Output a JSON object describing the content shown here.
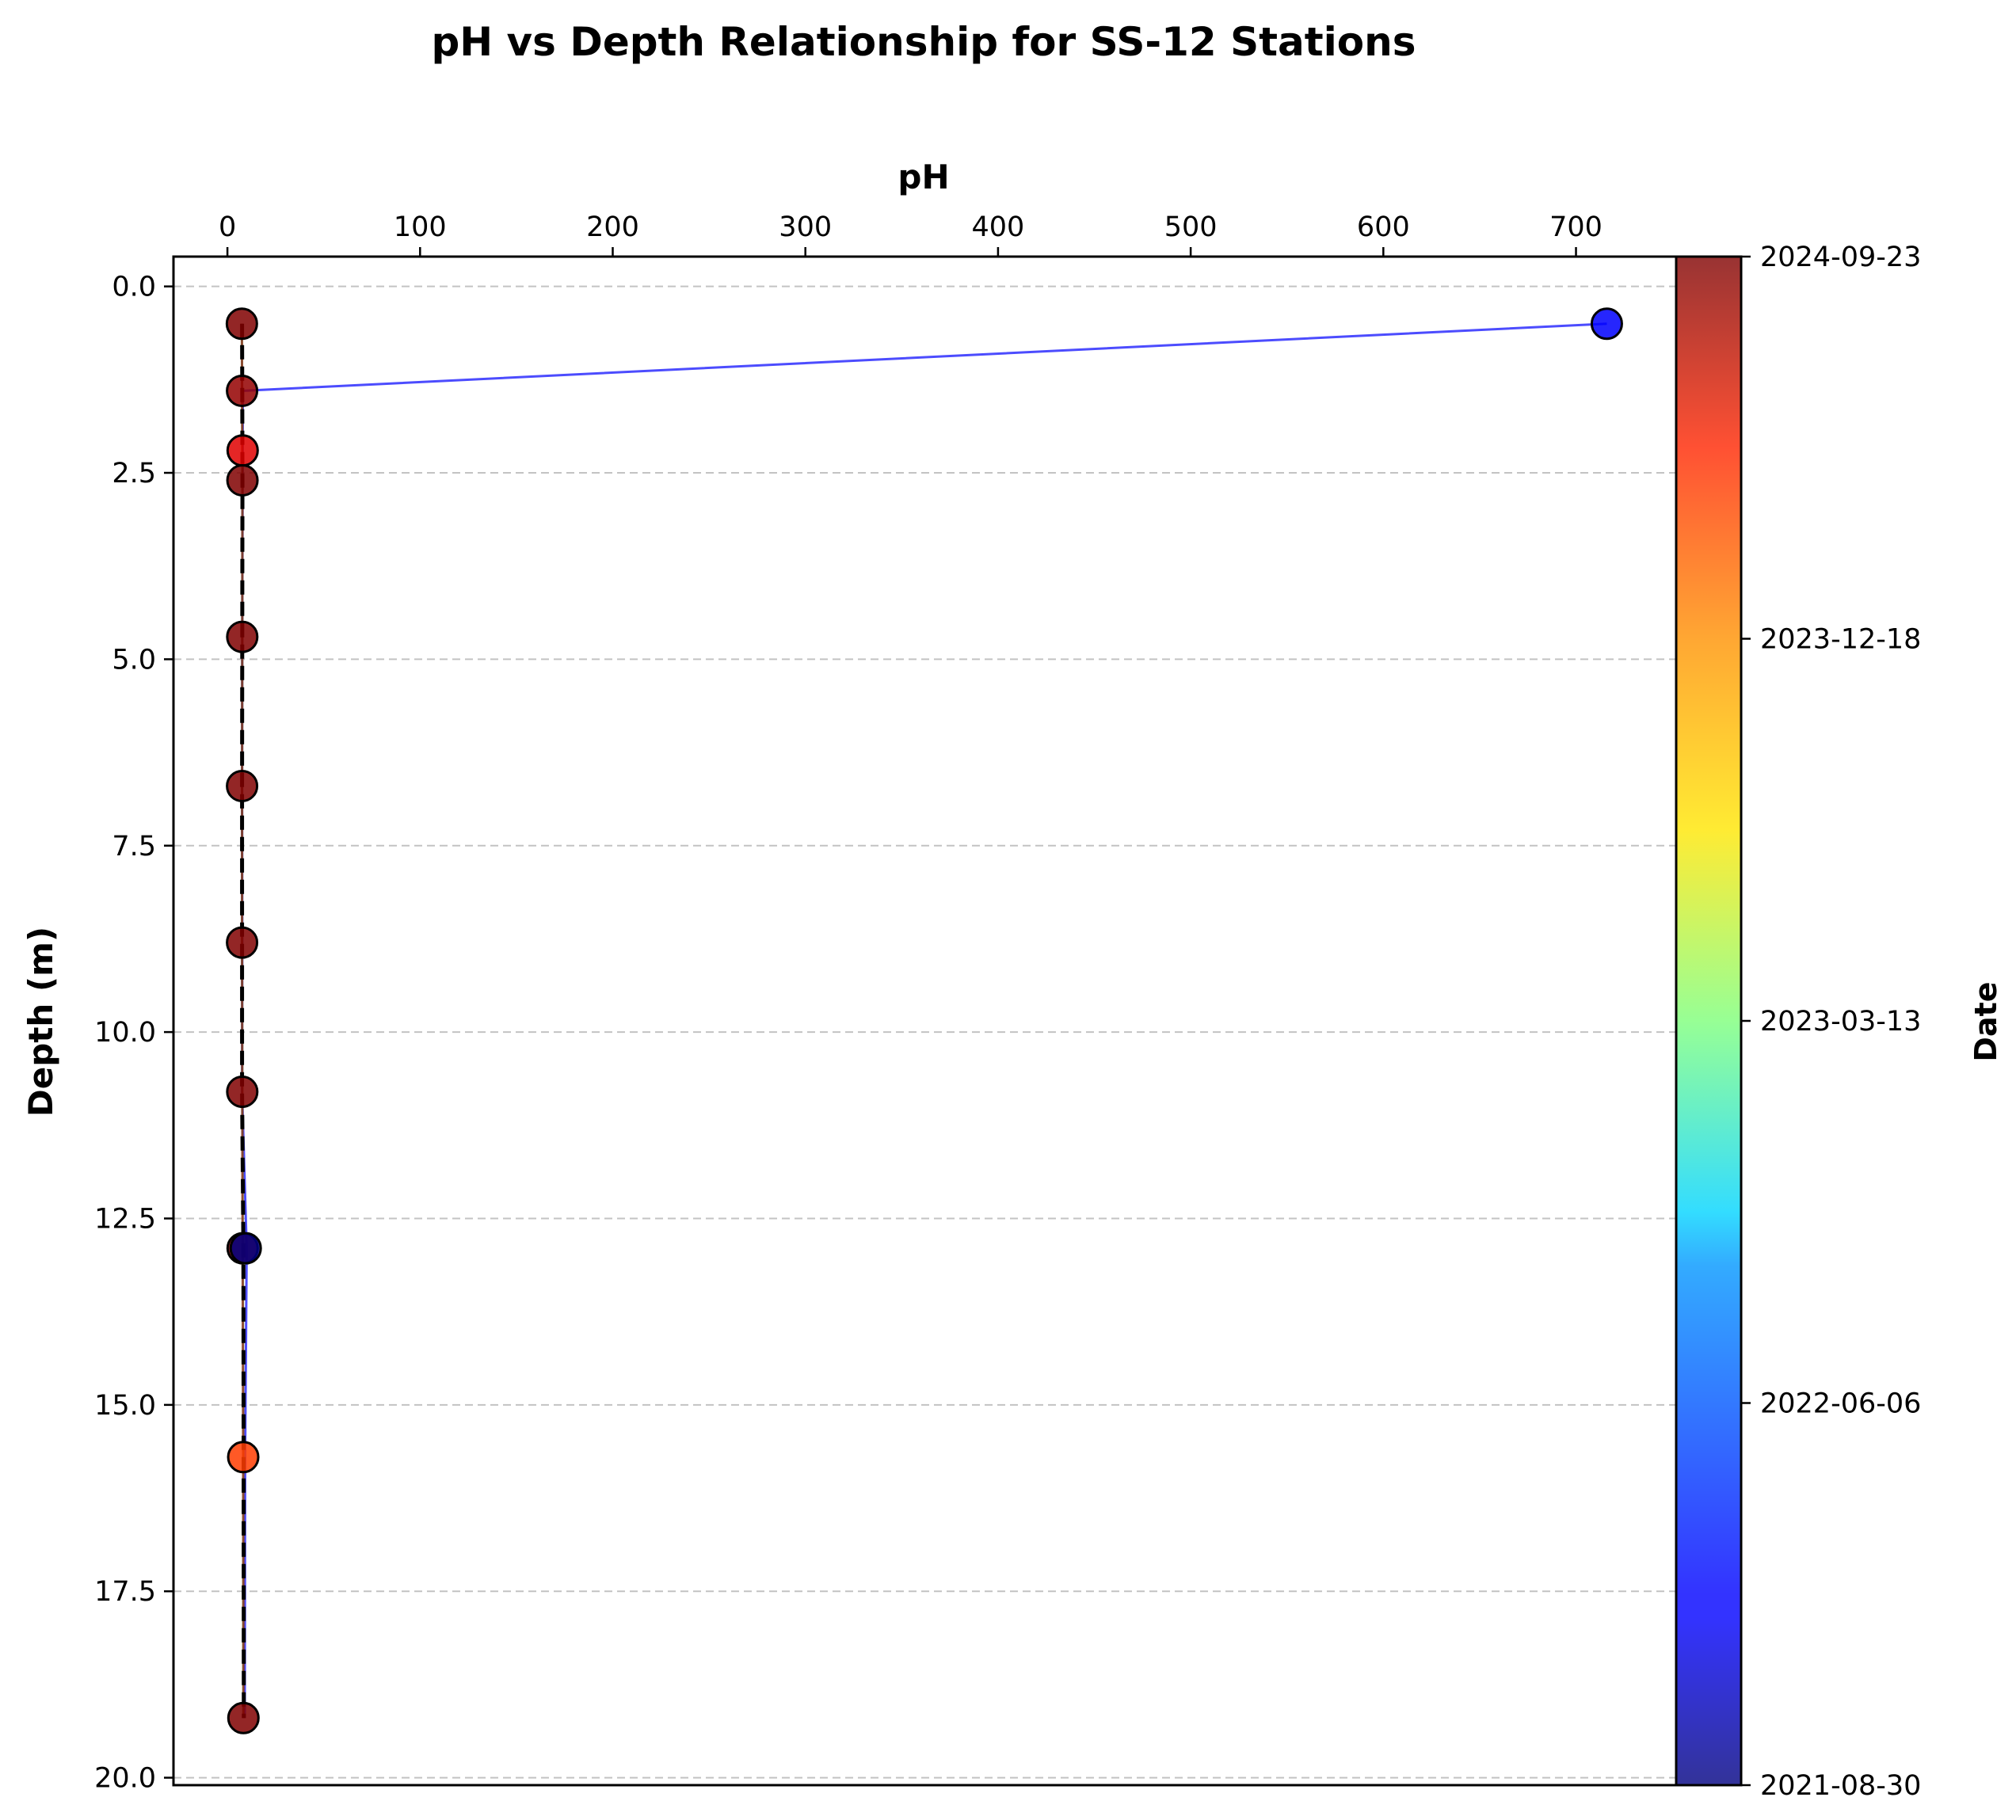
{
  "chart_data": {
    "type": "scatter",
    "title": "pH vs Depth Relationship for SS-12 Stations",
    "xlabel": "pH",
    "ylabel": "Depth (m)",
    "x_axis_position": "top",
    "y_inverted": true,
    "xlim": [
      -28,
      752
    ],
    "ylim": [
      20.1,
      -0.4
    ],
    "x_ticks": [
      0,
      100,
      200,
      300,
      400,
      500,
      600,
      700
    ],
    "x_tick_labels": [
      "0",
      "100",
      "200",
      "300",
      "400",
      "500",
      "600",
      "700"
    ],
    "y_ticks": [
      0,
      2.5,
      5,
      7.5,
      10,
      12.5,
      15,
      17.5,
      20
    ],
    "y_tick_labels": [
      "0.0",
      "2.5",
      "5.0",
      "7.5",
      "10.0",
      "12.5",
      "15.0",
      "17.5",
      "20.0"
    ],
    "grid": "horizontal dashed",
    "colorbar": {
      "label": "Date",
      "colormap": "jet",
      "min_date": "2021-08-30",
      "max_date": "2024-09-23",
      "tick_labels": [
        "2024-09-23",
        "2023-12-18",
        "2023-03-13",
        "2022-06-06",
        "2021-08-30"
      ],
      "tick_fractions": [
        1.0,
        0.75,
        0.5,
        0.25,
        0.0
      ]
    },
    "points": [
      {
        "date": "2024-09-23",
        "ph": 7.5,
        "depth": 0.5
      },
      {
        "date": "2024-09-01",
        "ph": 7.6,
        "depth": 1.4
      },
      {
        "date": "2024-06-10",
        "ph": 7.9,
        "depth": 2.2
      },
      {
        "date": "2024-09-23",
        "ph": 7.8,
        "depth": 2.6
      },
      {
        "date": "2024-09-23",
        "ph": 7.7,
        "depth": 4.7
      },
      {
        "date": "2024-09-23",
        "ph": 7.6,
        "depth": 6.7
      },
      {
        "date": "2024-09-23",
        "ph": 7.6,
        "depth": 8.8
      },
      {
        "date": "2024-09-23",
        "ph": 7.7,
        "depth": 10.8
      },
      {
        "date": "2024-09-23",
        "ph": 7.9,
        "depth": 12.9
      },
      {
        "date": "2024-03-01",
        "ph": 8.2,
        "depth": 15.7
      },
      {
        "date": "2024-09-23",
        "ph": 8.3,
        "depth": 19.2
      },
      {
        "date": "2021-08-30",
        "ph": 9.5,
        "depth": 12.9
      },
      {
        "date": "2022-01-15",
        "ph": 716.0,
        "depth": 0.5
      }
    ],
    "series": [
      {
        "date": "2022-01-15",
        "points": [
          [
            716,
            0.5
          ],
          [
            8.0,
            1.4
          ],
          [
            7.9,
            2.6
          ],
          [
            7.7,
            4.7
          ],
          [
            7.6,
            6.7
          ],
          [
            7.7,
            8.8
          ],
          [
            7.6,
            10.8
          ],
          [
            10.0,
            12.9
          ],
          [
            9.2,
            15.7
          ],
          [
            9.0,
            19.2
          ]
        ]
      },
      {
        "date": "2023-03-13",
        "points": [
          [
            7.5,
            0.5
          ],
          [
            7.6,
            1.4
          ],
          [
            7.8,
            2.6
          ],
          [
            7.7,
            4.7
          ],
          [
            7.6,
            6.7
          ],
          [
            7.6,
            8.8
          ],
          [
            7.7,
            10.8
          ],
          [
            8.0,
            12.9
          ],
          [
            8.2,
            15.7
          ],
          [
            8.2,
            19.2
          ]
        ]
      },
      {
        "date": "2024-09-23",
        "points": [
          [
            7.5,
            0.5
          ],
          [
            7.6,
            1.4
          ],
          [
            7.8,
            2.6
          ],
          [
            7.7,
            4.7
          ],
          [
            7.6,
            6.7
          ],
          [
            7.6,
            8.8
          ],
          [
            7.7,
            10.8
          ],
          [
            7.9,
            12.9
          ],
          [
            8.2,
            15.7
          ],
          [
            8.3,
            19.2
          ]
        ]
      }
    ],
    "mean_profile": {
      "style": "black dashed",
      "points": [
        [
          7.6,
          0.5
        ],
        [
          7.7,
          1.4
        ],
        [
          7.8,
          2.6
        ],
        [
          7.7,
          4.7
        ],
        [
          7.6,
          6.7
        ],
        [
          7.6,
          8.8
        ],
        [
          7.6,
          10.8
        ],
        [
          8.3,
          12.9
        ],
        [
          8.4,
          15.7
        ],
        [
          8.5,
          19.2
        ]
      ]
    }
  }
}
